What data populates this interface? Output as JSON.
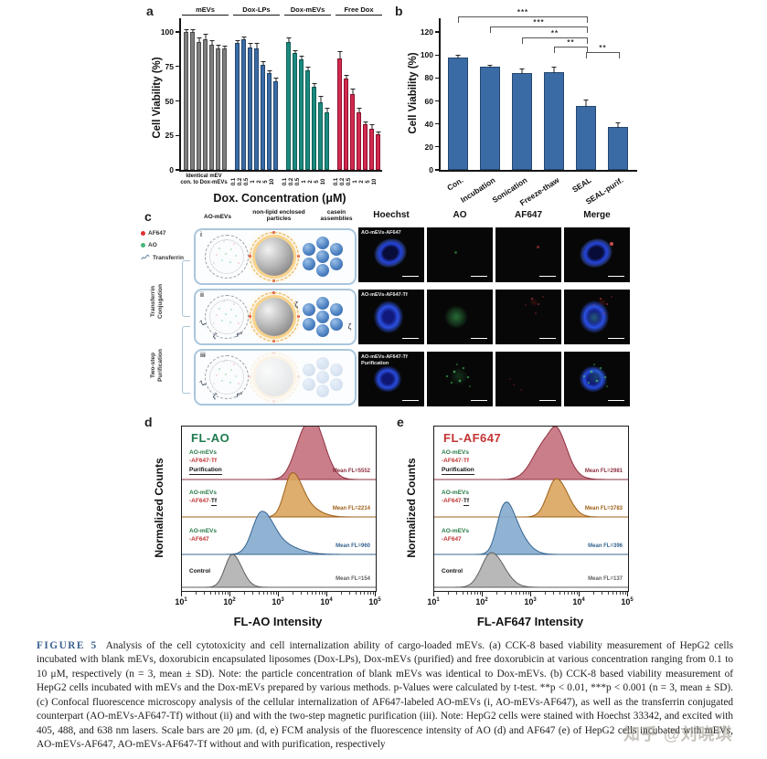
{
  "panel_a": {
    "letter": "a",
    "ylabel": "Cell Viability (%)",
    "xlabel": "Dox. Concentration (μM)",
    "first_group_note": "Identical mEV\ncon. to Dox-mEVs"
  },
  "panel_b": {
    "letter": "b",
    "ylabel": "Cell Viability (%)"
  },
  "panel_c": {
    "letter": "c",
    "legend": [
      {
        "label": "AF647",
        "color": "#e03131"
      },
      {
        "label": "AO",
        "color": "#47b57a"
      },
      {
        "label": "Transferrin",
        "color": "#7a93a8"
      }
    ],
    "schematic_columns": [
      "AO-mEVs",
      "non-lipid enclosed\nparticles",
      "casein\nassemblies"
    ],
    "rows": [
      "i",
      "ii",
      "iii"
    ],
    "side_label_1": "Transferrin\nConjugation",
    "side_label_2": "Two-step\nPurification",
    "image_columns": [
      "Hoechst",
      "AO",
      "AF647",
      "Merge"
    ],
    "image_row_labels": [
      "AO-mEVs-AF647",
      "AO-mEVs-AF647-Tf",
      "AO-mEVs-AF647-Tf\nPurification"
    ]
  },
  "panel_d": {
    "letter": "d",
    "title": "FL-AO",
    "title_color": "#1e7a4e",
    "ylabel": "Normalized Counts",
    "xlabel": "FL-AO Intensity",
    "xtick_exponents": [
      1,
      2,
      3,
      4,
      5
    ],
    "row_labels": [
      [
        [
          {
            "t": "AO-mEVs",
            "c": "#267a46"
          }
        ],
        [
          {
            "t": "-AF647-Tf",
            "c": "#c03434"
          }
        ],
        [
          {
            "t": "Purification",
            "c": "#111",
            "u": true
          }
        ]
      ],
      [
        [
          {
            "t": "AO-mEVs",
            "c": "#267a46"
          }
        ],
        [
          {
            "t": "-AF647-",
            "c": "#c03434"
          },
          {
            "t": "Tf",
            "c": "#111",
            "u": true
          }
        ]
      ],
      [
        [
          {
            "t": "AO-mEVs",
            "c": "#267a46"
          }
        ],
        [
          {
            "t": "-AF647",
            "c": "#c03434"
          }
        ]
      ],
      [
        [
          {
            "t": "Control",
            "c": "#111"
          }
        ]
      ]
    ]
  },
  "panel_e": {
    "letter": "e",
    "title": "FL-AF647",
    "title_color": "#c43333",
    "ylabel": "Normalized Counts",
    "xlabel": "FL-AF647 Intensity",
    "xtick_exponents": [
      1,
      2,
      3,
      4,
      5
    ],
    "row_labels": [
      [
        [
          {
            "t": "AO-mEVs",
            "c": "#267a46"
          }
        ],
        [
          {
            "t": "-AF647-Tf",
            "c": "#c03434"
          }
        ],
        [
          {
            "t": "Purification",
            "c": "#111",
            "u": true
          }
        ]
      ],
      [
        [
          {
            "t": "AO-mEVs",
            "c": "#267a46"
          }
        ],
        [
          {
            "t": "-AF647-",
            "c": "#c03434"
          },
          {
            "t": "Tf",
            "c": "#111",
            "u": true
          }
        ]
      ],
      [
        [
          {
            "t": "AO-mEVs",
            "c": "#267a46"
          }
        ],
        [
          {
            "t": "-AF647",
            "c": "#c03434"
          }
        ]
      ],
      [
        [
          {
            "t": "Control",
            "c": "#111"
          }
        ]
      ]
    ]
  },
  "chart_data": [
    {
      "id": "a",
      "type": "bar",
      "ylabel": "Cell Viability (%)",
      "xlabel": "Dox. Concentration (μM)",
      "ylim": [
        0,
        110
      ],
      "yticks": [
        0,
        25,
        50,
        75,
        100
      ],
      "dose_labels": [
        "0.1",
        "0.2",
        "0.5",
        "1",
        "2",
        "5",
        "10"
      ],
      "first_group_tick": "Identical mEV con. to Dox-mEVs",
      "series": [
        {
          "name": "mEVs",
          "color": "#7e7e7e",
          "edge": "#515151",
          "values": [
            100,
            100,
            93,
            95,
            91,
            88,
            88
          ],
          "errors": [
            2,
            2,
            3,
            4,
            3,
            3,
            2
          ]
        },
        {
          "name": "Dox-LPs",
          "color": "#3b6ba5",
          "edge": "#24476f",
          "values": [
            92,
            95,
            89,
            88,
            76,
            70,
            64
          ],
          "errors": [
            2,
            1.5,
            3,
            4,
            3,
            2,
            3
          ]
        },
        {
          "name": "Dox-mEVs",
          "color": "#1b8a80",
          "edge": "#0f6057",
          "values": [
            93,
            85,
            80,
            72,
            60,
            49,
            42
          ],
          "errors": [
            3,
            2,
            3,
            3,
            3,
            5,
            3
          ]
        },
        {
          "name": "Free Dox",
          "color": "#d12a4e",
          "edge": "#8f1030",
          "values": [
            81,
            66,
            55,
            42,
            33,
            30,
            26
          ],
          "errors": [
            5,
            3,
            4,
            3,
            2,
            3,
            2
          ]
        }
      ]
    },
    {
      "id": "b",
      "type": "bar",
      "ylabel": "Cell Viability (%)",
      "ylim": [
        0,
        132
      ],
      "yticks": [
        0,
        20,
        40,
        60,
        80,
        100,
        120
      ],
      "categories": [
        "Con.",
        "Incubation",
        "Sonication",
        "Freeze-thaw",
        "SEAL",
        "SEAL-purif."
      ],
      "values": [
        98,
        90,
        84,
        85,
        56,
        37
      ],
      "errors": [
        2,
        1.5,
        4,
        5,
        5,
        4
      ],
      "color": "#3b6ba5",
      "edge": "#24476f",
      "significance": [
        {
          "from": 0,
          "to": 4,
          "label": "***",
          "height": 128
        },
        {
          "from": 1,
          "to": 4,
          "label": "***",
          "height": 119
        },
        {
          "from": 2,
          "to": 4,
          "label": "**",
          "height": 110
        },
        {
          "from": 3,
          "to": 4,
          "label": "**",
          "height": 102
        },
        {
          "from": 4,
          "to": 5,
          "label": "**",
          "height": 97
        }
      ]
    },
    {
      "id": "d",
      "type": "area",
      "title": "FL-AO",
      "xlabel": "FL-AO Intensity",
      "ylabel": "Normalized Counts",
      "xscale": "log",
      "xlim": [
        10,
        100000
      ],
      "rows": [
        {
          "name": "AO-mEVs-AF647-Tf Purification",
          "mean_label": "Mean FL=5552",
          "fill": "#c4707c",
          "line": "#8e3040",
          "comps": [
            {
              "mu": 3.5,
              "s": 0.2,
              "h": 42
            },
            {
              "mu": 3.76,
              "s": 0.18,
              "h": 40
            }
          ]
        },
        {
          "name": "AO-mEVs-AF647-Tf",
          "mean_label": "Mean FL=2214",
          "fill": "#d9a55e",
          "line": "#9e6018",
          "comps": [
            {
              "mu": 3.26,
              "s": 0.15,
              "h": 42
            },
            {
              "mu": 3.52,
              "s": 0.22,
              "h": 12
            }
          ]
        },
        {
          "name": "AO-mEVs-AF647",
          "mean_label": "Mean FL=960",
          "fill": "#85abce",
          "line": "#34648f",
          "comps": [
            {
              "mu": 2.63,
              "s": 0.18,
              "h": 40
            },
            {
              "mu": 2.95,
              "s": 0.3,
              "h": 12
            }
          ]
        },
        {
          "name": "Control",
          "mean_label": "Mean FL=154",
          "fill": "#b0b0b0",
          "line": "#5f5f5f",
          "comps": [
            {
              "mu": 2.04,
              "s": 0.15,
              "h": 36
            }
          ]
        }
      ]
    },
    {
      "id": "e",
      "type": "area",
      "title": "FL-AF647",
      "xlabel": "FL-AF647 Intensity",
      "ylabel": "Normalized Counts",
      "xscale": "log",
      "xlim": [
        10,
        100000
      ],
      "rows": [
        {
          "name": "AO-mEVs-AF647-Tf Purification",
          "mean_label": "Mean FL=2981",
          "fill": "#c4707c",
          "line": "#8e3040",
          "comps": [
            {
              "mu": 3.3,
              "s": 0.26,
              "h": 40
            },
            {
              "mu": 3.55,
              "s": 0.15,
              "h": 26
            }
          ]
        },
        {
          "name": "AO-mEVs-AF647-Tf",
          "mean_label": "Mean FL=3783",
          "fill": "#d9a55e",
          "line": "#9e6018",
          "comps": [
            {
              "mu": 3.52,
              "s": 0.18,
              "h": 42
            }
          ]
        },
        {
          "name": "AO-mEVs-AF647",
          "mean_label": "Mean FL=396",
          "fill": "#85abce",
          "line": "#34648f",
          "comps": [
            {
              "mu": 2.42,
              "s": 0.14,
              "h": 34
            },
            {
              "mu": 2.6,
              "s": 0.2,
              "h": 30
            }
          ]
        },
        {
          "name": "Control",
          "mean_label": "Mean FL=137",
          "fill": "#b0b0b0",
          "line": "#5f5f5f",
          "comps": [
            {
              "mu": 2.18,
              "s": 0.2,
              "h": 38
            }
          ]
        }
      ]
    }
  ],
  "caption": {
    "label": "FIGURE 5",
    "text": "Analysis of the cell cytotoxicity and cell internalization ability of cargo-loaded mEVs. (a) CCK-8 based viability measurement of HepG2 cells incubated with blank mEVs, doxorubicin encapsulated liposomes (Dox-LPs), Dox-mEVs (purified) and free doxorubicin at various concentration ranging from 0.1 to 10 μM, respectively (n = 3, mean ± SD). Note: the particle concentration of blank mEVs was identical to Dox-mEVs. (b) CCK-8 based viability measurement of HepG2 cells incubated with mEVs and the Dox-mEVs prepared by various methods. p-Values were calculated by t-test. **p < 0.01, ***p < 0.001 (n = 3, mean ± SD). (c) Confocal fluorescence microscopy analysis of the cellular internalization of AF647-labeled AO-mEVs (i, AO-mEVs-AF647), as well as the transferrin conjugated counterpart (AO-mEVs-AF647-Tf) without (ii) and with the two-step magnetic purification (iii). Note: HepG2 cells were stained with Hoechst 33342, and excited with 405, 488, and 638 nm lasers. Scale bars are 20 μm. (d, e) FCM analysis of the fluorescence intensity of AO (d) and AF647 (e) of HepG2 cells incubated with mEVs, AO-mEVs-AF647, AO-mEVs-AF647-Tf without and with purification, respectively"
  },
  "watermark": "知乎 @刘晓琪"
}
